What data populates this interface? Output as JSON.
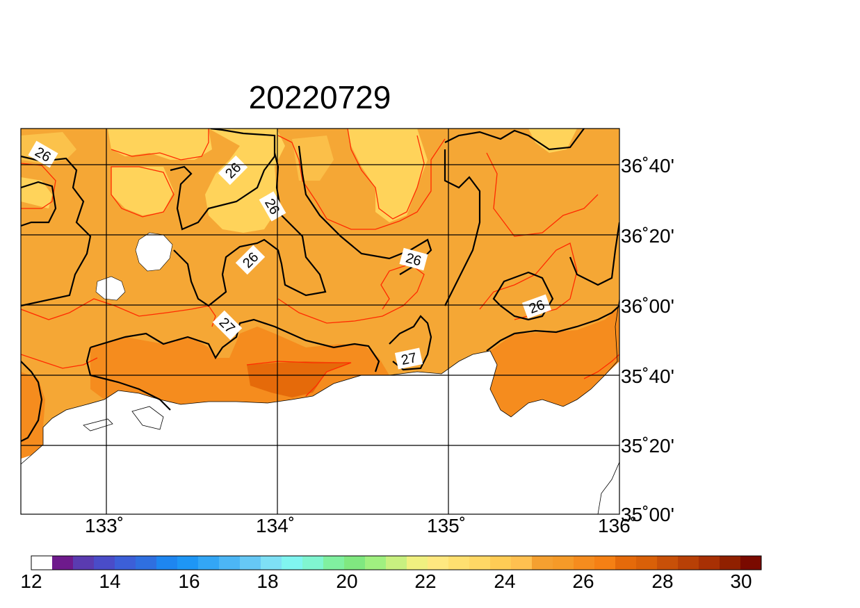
{
  "title": "20220729",
  "lat_labels": [
    "36˚40'",
    "36˚20'",
    "36˚00'",
    "35˚40'",
    "35˚20'",
    "35˚00'"
  ],
  "lon_labels": [
    "133˚",
    "134˚",
    "135˚",
    "136˚"
  ],
  "contour_labels": [
    "26",
    "26",
    "26",
    "26",
    "26",
    "26",
    "27",
    "27"
  ],
  "colorbar": {
    "labels": [
      "12",
      "14",
      "16",
      "18",
      "20",
      "22",
      "24",
      "26",
      "28",
      "30"
    ],
    "min": 12,
    "max": 30,
    "colors": [
      "#ffffff",
      "#6e1a8c",
      "#5a3bb0",
      "#4a4cc8",
      "#3c5fd8",
      "#2f6fe0",
      "#1e86f0",
      "#1e96f5",
      "#33a6f5",
      "#4cb6f5",
      "#66c8f5",
      "#7ee0f5",
      "#80f5f0",
      "#80f5d0",
      "#80f0a0",
      "#80e880",
      "#a0f080",
      "#c8f080",
      "#f0f080",
      "#ffe880",
      "#ffe070",
      "#ffd865",
      "#ffcc55",
      "#ffc050",
      "#f5a030",
      "#f59a28",
      "#f58c1e",
      "#f58014",
      "#e56a0a",
      "#d96008",
      "#c85008",
      "#b84006",
      "#a83004",
      "#902000",
      "#7a0a00"
    ]
  },
  "colors": {
    "land_base": "#f5a735",
    "light_region": "#ffd35a",
    "warm_region": "#f58c1e",
    "hot_region": "#e56a0a",
    "contour_red": "#ff2a00",
    "contour_black": "#000000"
  }
}
